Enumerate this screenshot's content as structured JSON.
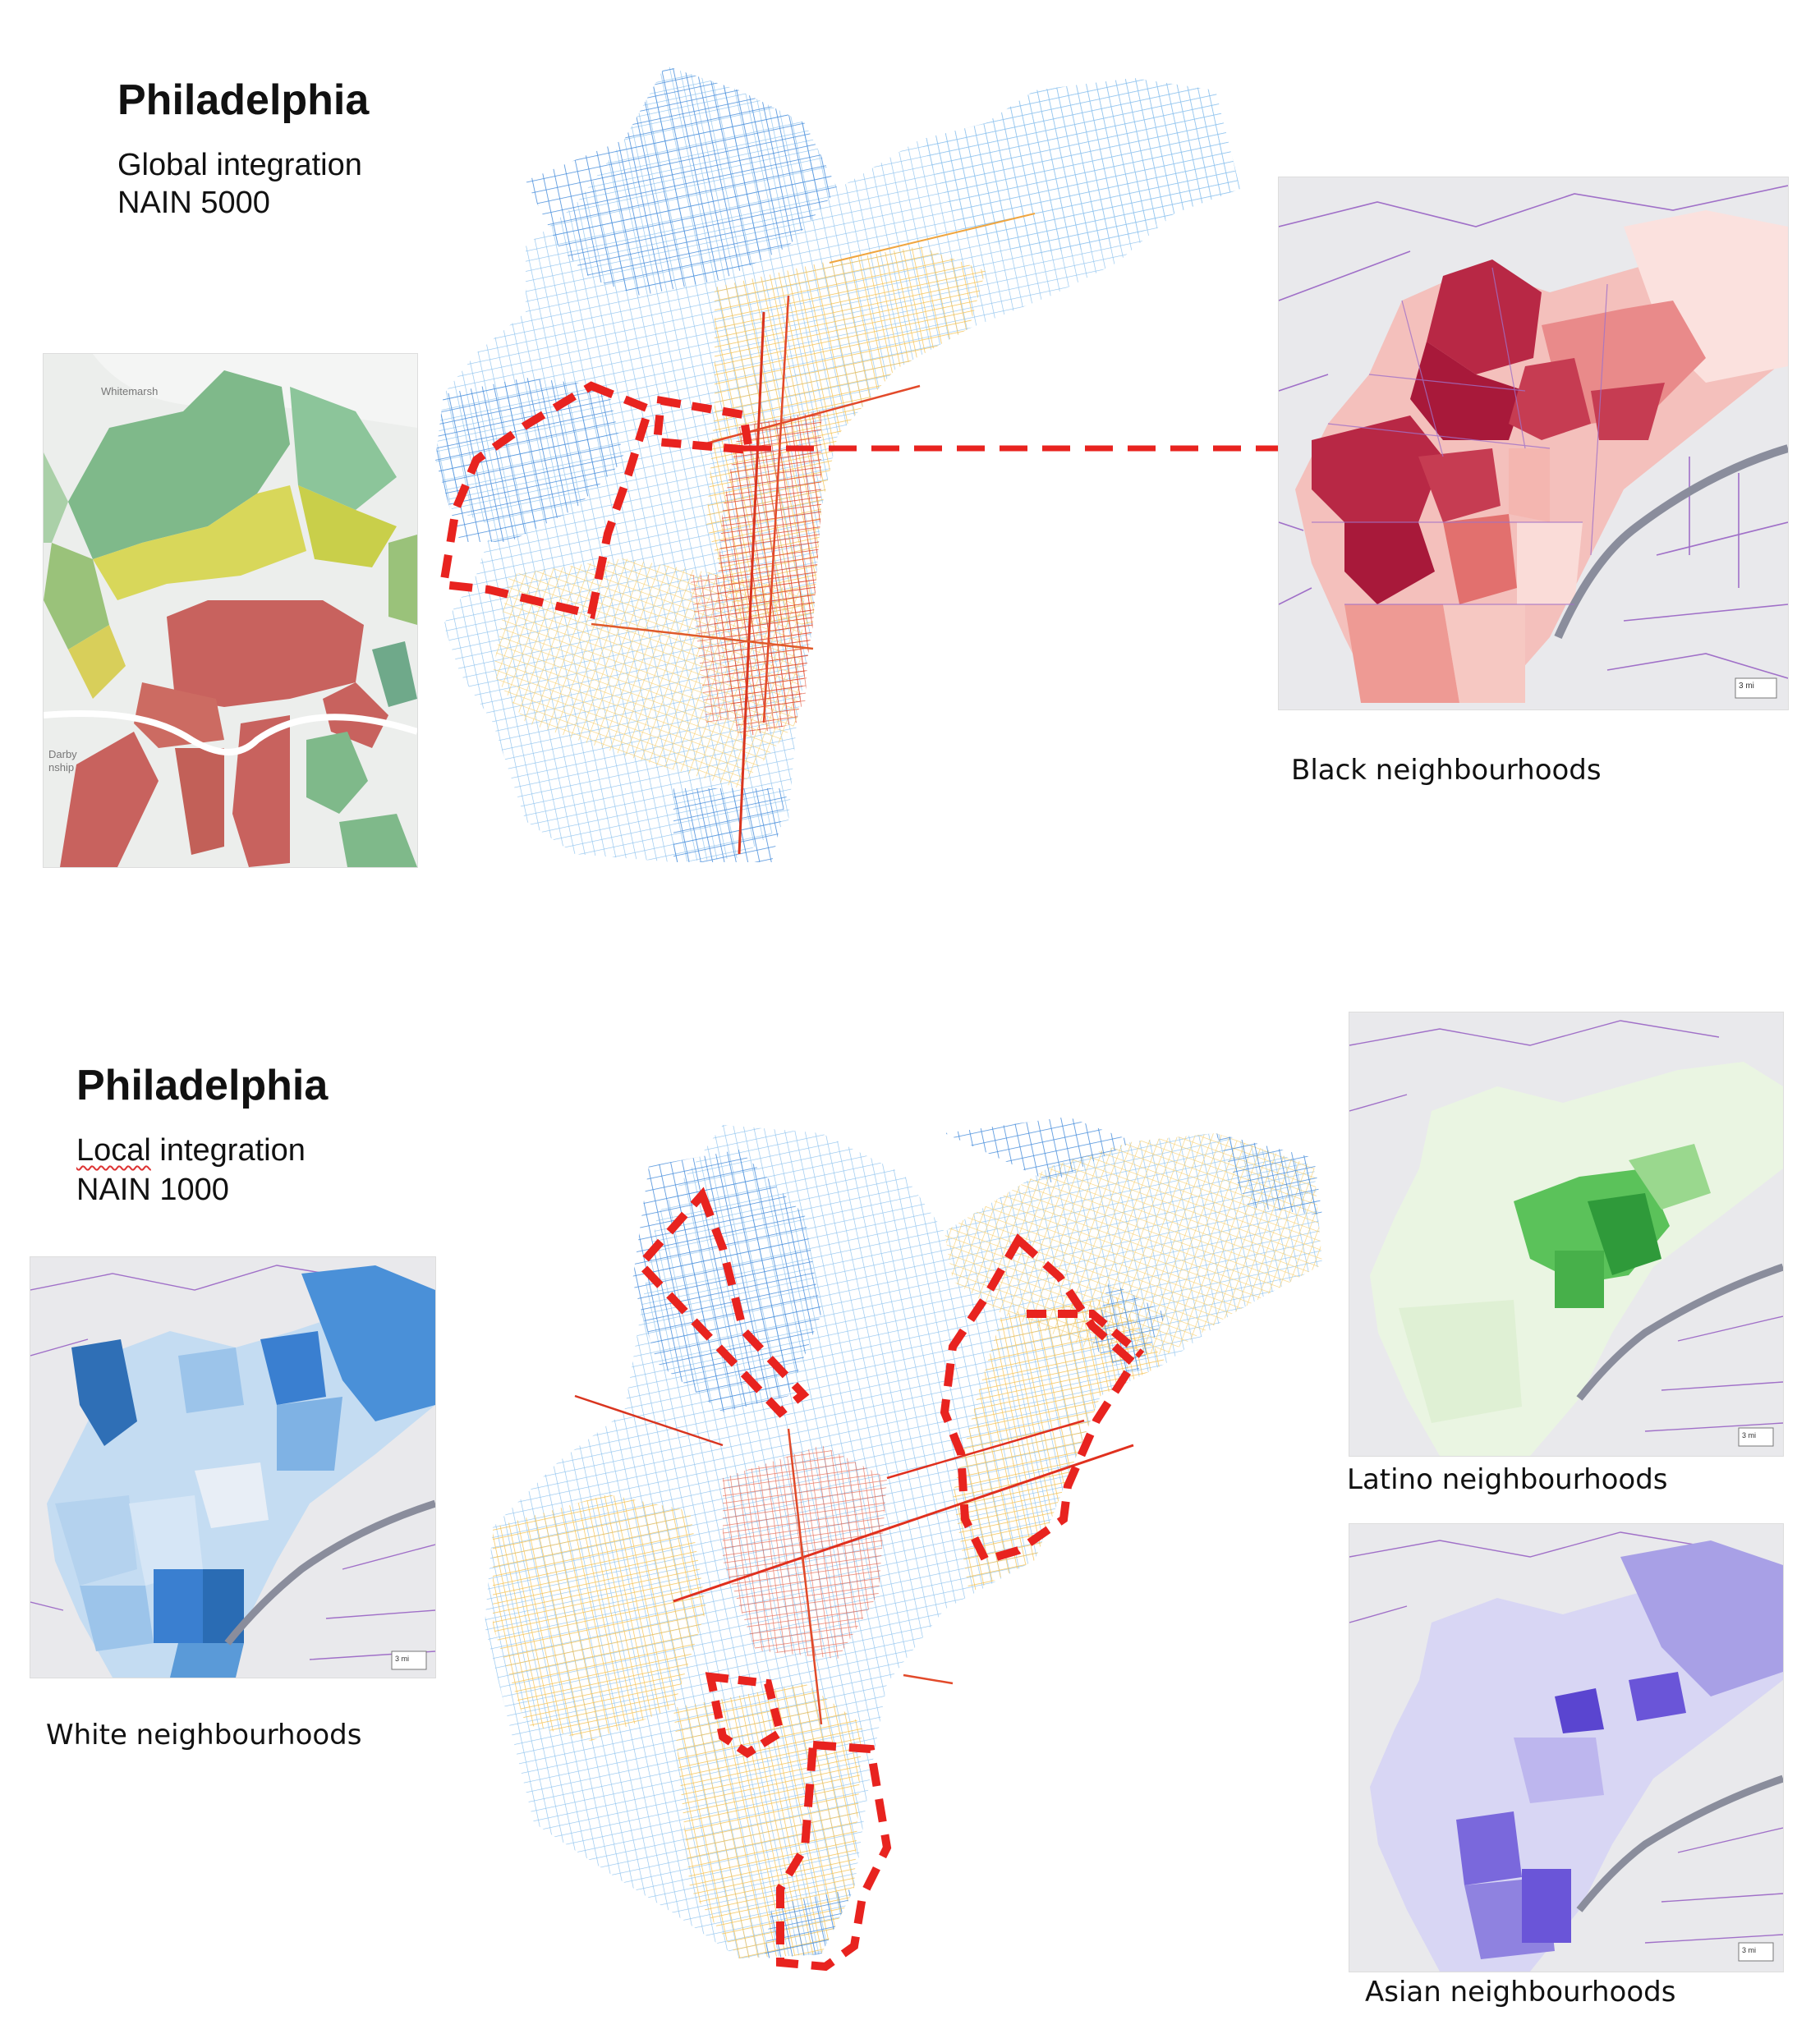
{
  "top": {
    "city": "Philadelphia",
    "line1": "Global integration",
    "line2": "NAIN 5000",
    "right_caption": "Black neighbourhoods"
  },
  "bottom": {
    "city": "Philadelphia",
    "line1_word": "Local",
    "line1_rest": " integration",
    "line2": "NAIN 1000",
    "left_caption": "White neighbourhoods",
    "right_caption_1": "Latino neighbourhoods",
    "right_caption_2": "Asian neighbourhoods"
  },
  "colors": {
    "highlight": "#e8231f",
    "black_map": "#a8193a",
    "white_map": "#3a7fd0",
    "latino_map": "#2fa83a",
    "asian_map": "#6a55d8",
    "zip_boundary": "#a070c8",
    "network_cold": "#3a86d8",
    "network_warm": "#f5b638",
    "network_hot": "#e0301e"
  },
  "legend_scale": "3 mi",
  "left_map_labels": [
    "Whitemarsh",
    "Darby",
    "nship"
  ]
}
